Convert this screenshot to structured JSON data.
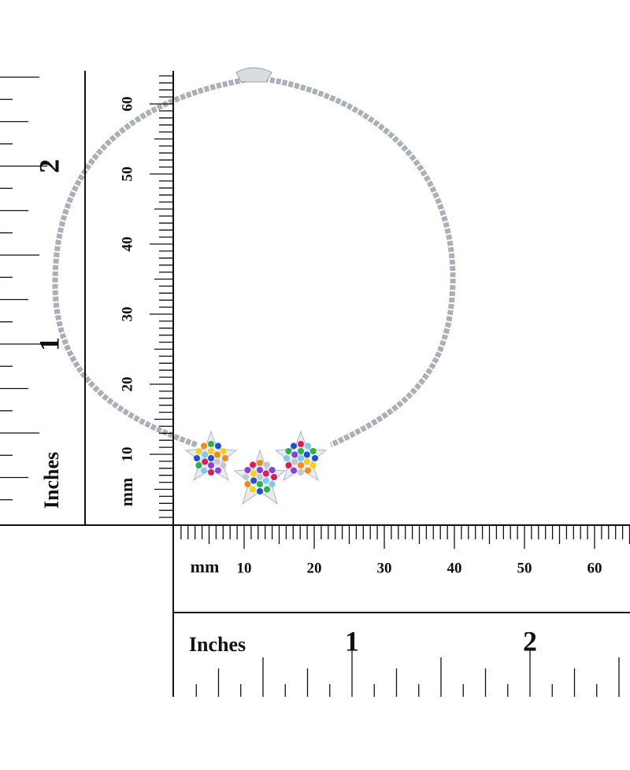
{
  "horizontal_ruler": {
    "mm": {
      "unit": "mm",
      "labels": [
        10,
        20,
        30,
        40,
        50,
        60
      ]
    },
    "inches": {
      "unit": "Inches",
      "labels": [
        1,
        2
      ]
    }
  },
  "vertical_ruler": {
    "mm": {
      "unit": "mm",
      "labels": [
        10,
        20,
        30,
        40,
        50,
        60
      ]
    },
    "inches": {
      "unit": "Inches",
      "labels": [
        1,
        2
      ]
    }
  }
}
